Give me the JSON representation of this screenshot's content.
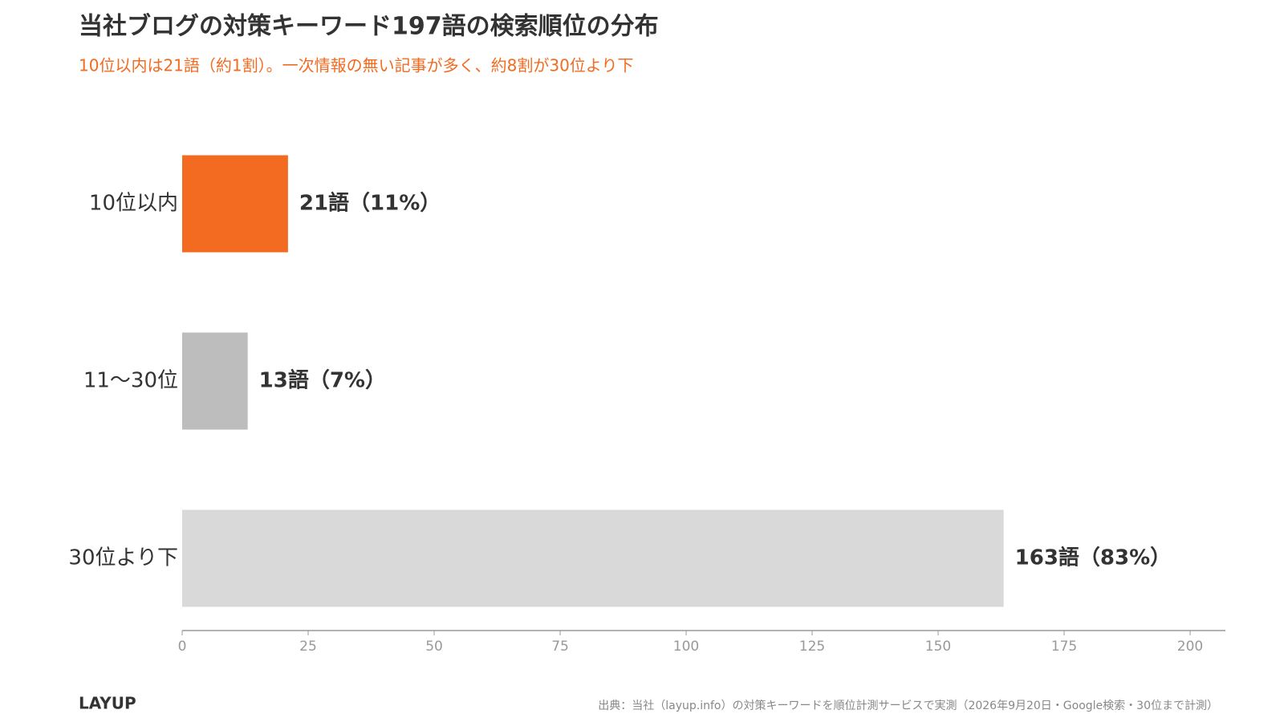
{
  "chart_data": {
    "type": "hbar",
    "title": "当社ブログの対策キーワード197語の検索順位の分布",
    "subtitle": "10位以内は21語（約1割）。一次情報の無い記事が多く、約8割が30位より下",
    "categories": [
      "10位以内",
      "11〜30位",
      "30位より下"
    ],
    "values": [
      21,
      13,
      163
    ],
    "value_labels": [
      "21語（11%）",
      "13語（7%）",
      "163語（83%）"
    ],
    "colors": [
      "#f26b21",
      "#bdbdbd",
      "#d9d9d9"
    ],
    "xlim": [
      0,
      207
    ],
    "xticks": [
      0,
      25,
      50,
      75,
      100,
      125,
      150,
      175,
      200
    ],
    "brand": "LAYUP",
    "source": "出典：当社（layup.info）の対策キーワードを順位計測サービスで実測（2026年9月20日・Google検索・30位まで計測）"
  }
}
